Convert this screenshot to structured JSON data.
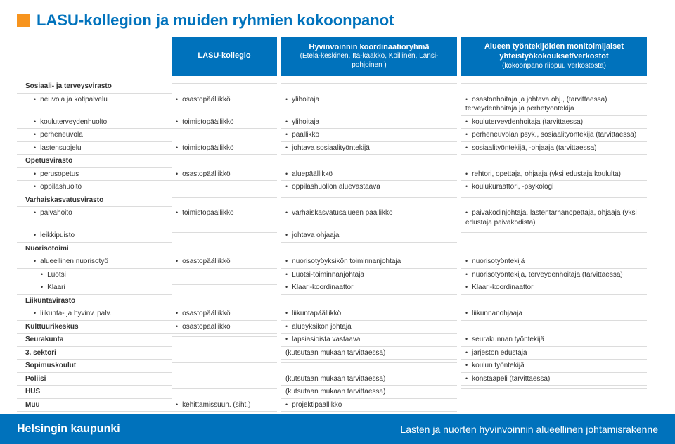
{
  "colors": {
    "accent_orange": "#f7941e",
    "brand_blue": "#0072bc",
    "rule_gray": "#dcdcdc",
    "text": "#333333",
    "white": "#ffffff"
  },
  "title": "LASU-kollegion ja muiden ryhmien kokoonpanot",
  "columns": {
    "c2_title": "LASU-kollegio",
    "c3_title": "Hyvinvoinnin koordinaatioryhmä",
    "c3_sub": "(Etelä-keskinen, Itä-kaakko, Koillinen, Länsi-pohjoinen )",
    "c4_title": "Alueen työntekijöiden monitoimijaiset yhteistyökokoukset/verkostot",
    "c4_sub": "(kokoonpano riippuu verkostosta)"
  },
  "groups": [
    {
      "label": "Sosiaali- ja terveysvirasto",
      "type": "heading"
    },
    {
      "label": "neuvola ja kotipalvelu",
      "c2": "osastopäällikkö",
      "c3": "ylihoitaja",
      "c4": "osastonhoitaja ja johtava ohj., (tarvittaessa) terveydenhoitaja ja perhetyöntekijä",
      "type": "item"
    },
    {
      "label": "kouluterveydenhuolto",
      "c2": "toimistopäällikkö",
      "c3": "ylihoitaja",
      "c4": "kouluterveydenhoitaja (tarvittaessa)",
      "type": "item"
    },
    {
      "label": "perheneuvola",
      "c2": "",
      "c3": "päällikkö",
      "c4": "perheneuvolan psyk., sosiaalityöntekijä (tarvittaessa)",
      "type": "item"
    },
    {
      "label": "lastensuojelu",
      "c2": "toimistopäällikkö",
      "c3": "johtava sosiaalityöntekijä",
      "c4": "sosiaalityöntekijä, -ohjaaja (tarvittaessa)",
      "type": "item"
    },
    {
      "label": "Opetusvirasto",
      "type": "heading"
    },
    {
      "label": "perusopetus",
      "c2": "osastopäällikkö",
      "c3": "aluepäällikkö",
      "c4": "rehtori, opettaja, ohjaaja (yksi edustaja koululta)",
      "type": "item"
    },
    {
      "label": "oppilashuolto",
      "c2": "",
      "c3": "oppilashuollon aluevastaava",
      "c4": "koulukuraattori, -psykologi",
      "type": "item"
    },
    {
      "label": "Varhaiskasvatusvirasto",
      "type": "heading"
    },
    {
      "label": "päivähoito",
      "c2": "toimistopäällikkö",
      "c3": "varhaiskasvatusalueen päällikkö",
      "c4": "päiväkodinjohtaja, lastentarhanopettaja, ohjaaja (yksi edustaja päiväkodista)",
      "type": "item"
    },
    {
      "label": "leikkipuisto",
      "c2": "",
      "c3": "johtava ohjaaja",
      "c4": "",
      "type": "item"
    },
    {
      "label": "Nuorisotoimi",
      "type": "heading"
    },
    {
      "label": "alueellinen nuorisotyö",
      "c2": "osastopäällikkö",
      "c3": "nuorisotyöyksikön toiminnanjohtaja",
      "c4": "nuorisotyöntekijä",
      "type": "item"
    },
    {
      "label": "Luotsi",
      "c2": "",
      "c3": "Luotsi-toiminnanjohtaja",
      "c4": "nuorisotyöntekijä, terveydenhoitaja (tarvittaessa)",
      "type": "item2"
    },
    {
      "label": "Klaari",
      "c2": "",
      "c3": "Klaari-koordinaattori",
      "c4": "Klaari-koordinaattori",
      "type": "item2"
    },
    {
      "label": "Liikuntavirasto",
      "type": "heading"
    },
    {
      "label": "liikunta- ja hyvinv. palv.",
      "c2": "osastopäällikkö",
      "c3": "liikuntapäällikkö",
      "c4": "liikunnanohjaaja",
      "type": "item"
    },
    {
      "label": "Kulttuurikeskus",
      "c2": "osastopäällikkö",
      "c3": "alueyksikön johtaja",
      "c4": "",
      "type": "bold"
    },
    {
      "label": "Seurakunta",
      "c2": "",
      "c3": "lapsiasioista vastaava",
      "c4": "seurakunnan työntekijä",
      "type": "bold"
    },
    {
      "label": "3. sektori",
      "c2": "",
      "c3": "(kutsutaan mukaan tarvittaessa)",
      "c4": "järjestön edustaja",
      "type": "bold"
    },
    {
      "label": "Sopimuskoulut",
      "c2": "",
      "c3": "",
      "c4": "koulun työntekijä",
      "type": "bold"
    },
    {
      "label": "Poliisi",
      "c2": "",
      "c3": "(kutsutaan mukaan tarvittaessa)",
      "c4": "konstaapeli (tarvittaessa)",
      "type": "bold"
    },
    {
      "label": "HUS",
      "c2": "",
      "c3": "(kutsutaan mukaan tarvittaessa)",
      "c4": "",
      "type": "bold"
    },
    {
      "label": "Muu",
      "c2": "kehittämissuun. (siht.)",
      "c3": "projektipäällikkö",
      "c4": "",
      "type": "bold"
    }
  ],
  "footer": {
    "left": "Helsingin kaupunki",
    "right": "Lasten ja nuorten hyvinvoinnin alueellinen johtamisrakenne"
  }
}
